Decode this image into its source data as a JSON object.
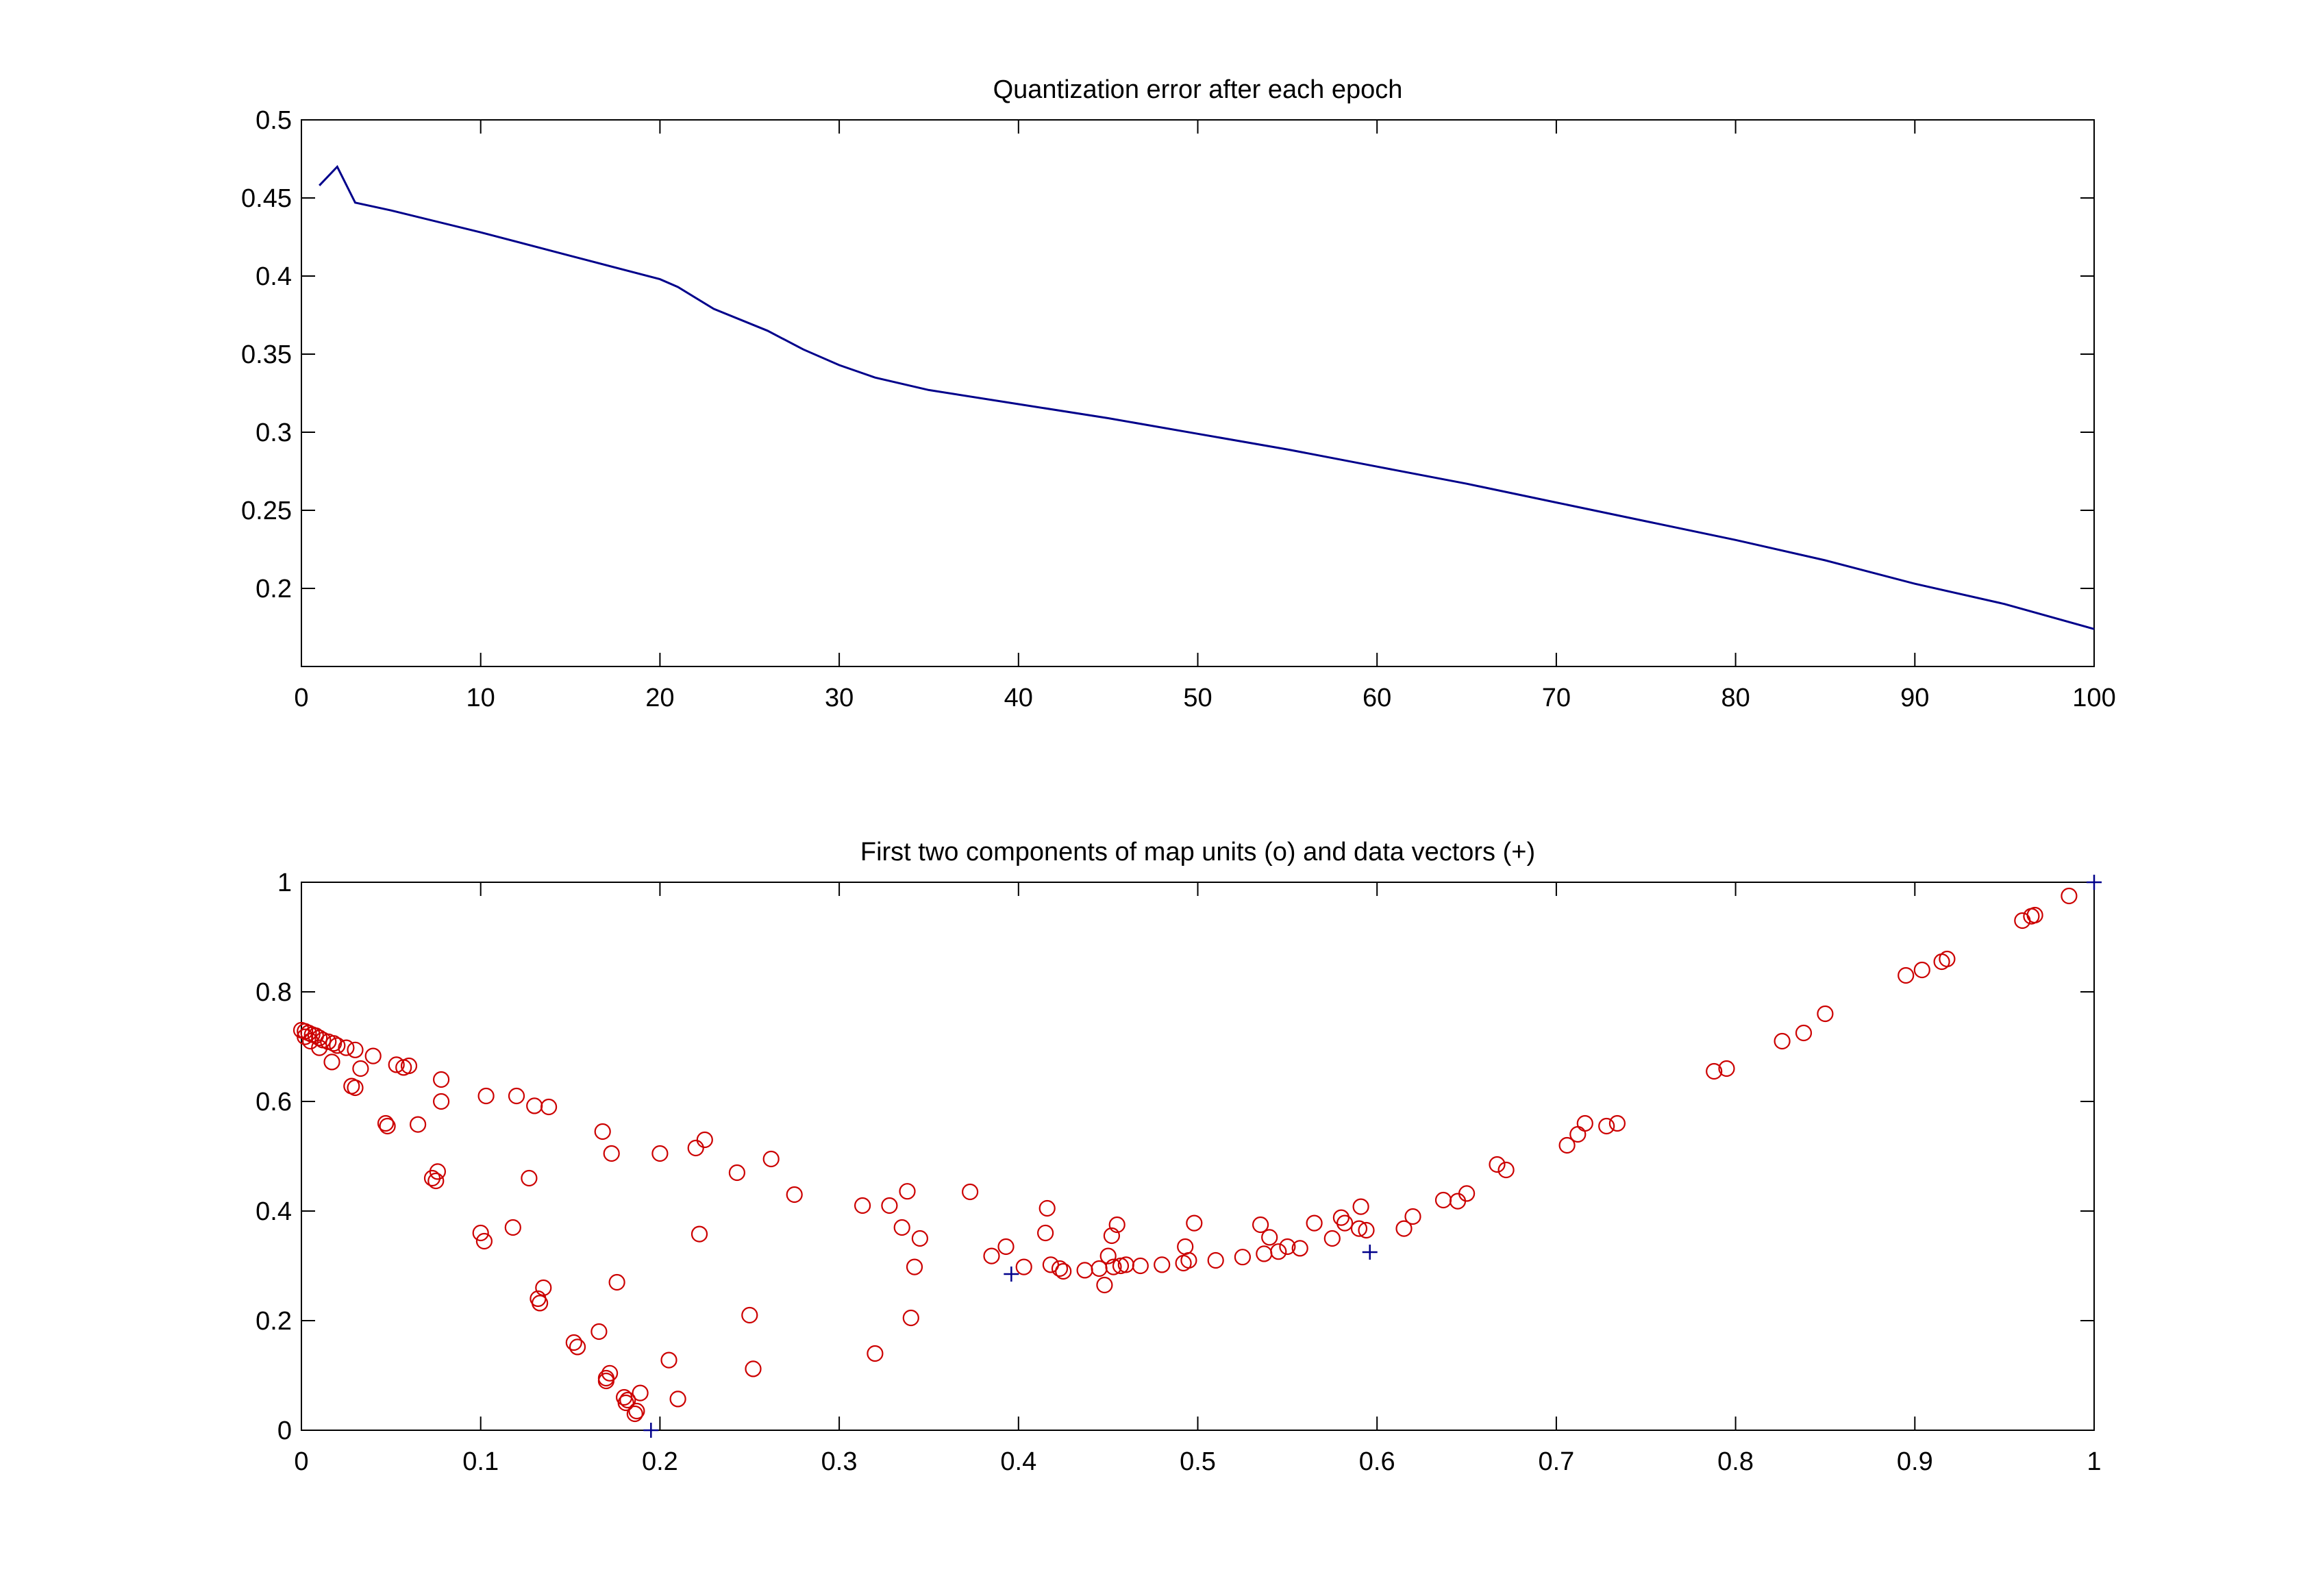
{
  "chart_data": [
    {
      "type": "line",
      "title": "Quantization error after each epoch",
      "xlabel": "",
      "ylabel": "",
      "xlim": [
        0,
        100
      ],
      "ylim": [
        0.15,
        0.5
      ],
      "x_ticks": [
        0,
        10,
        20,
        30,
        40,
        50,
        60,
        70,
        80,
        90,
        100
      ],
      "x_tick_labels": [
        "0",
        "10",
        "20",
        "30",
        "40",
        "50",
        "60",
        "70",
        "80",
        "90",
        "100"
      ],
      "y_ticks": [
        0.2,
        0.25,
        0.3,
        0.35,
        0.4,
        0.45,
        0.5
      ],
      "y_tick_labels": [
        "0.2",
        "0.25",
        "0.3",
        "0.35",
        "0.4",
        "0.45",
        "0.5"
      ],
      "grid": false,
      "series": [
        {
          "color": "#00008b",
          "x": [
            1,
            2,
            3,
            5,
            10,
            15,
            20,
            21,
            23,
            26,
            28,
            30,
            32,
            35,
            40,
            45,
            50,
            55,
            60,
            65,
            70,
            75,
            80,
            85,
            90,
            95,
            100
          ],
          "y": [
            0.458,
            0.47,
            0.447,
            0.442,
            0.428,
            0.413,
            0.398,
            0.393,
            0.379,
            0.365,
            0.353,
            0.343,
            0.335,
            0.327,
            0.318,
            0.309,
            0.299,
            0.289,
            0.278,
            0.267,
            0.255,
            0.243,
            0.231,
            0.218,
            0.203,
            0.19,
            0.174
          ]
        }
      ]
    },
    {
      "type": "scatter",
      "title": "First two components of map units (o) and data vectors (+)",
      "xlabel": "",
      "ylabel": "",
      "xlim": [
        0,
        1
      ],
      "ylim": [
        0,
        1
      ],
      "x_ticks": [
        0,
        0.1,
        0.2,
        0.3,
        0.4,
        0.5,
        0.6,
        0.7,
        0.8,
        0.9,
        1
      ],
      "x_tick_labels": [
        "0",
        "0.1",
        "0.2",
        "0.3",
        "0.4",
        "0.5",
        "0.6",
        "0.7",
        "0.8",
        "0.9",
        "1"
      ],
      "y_ticks": [
        0,
        0.2,
        0.4,
        0.6,
        0.8,
        1
      ],
      "y_tick_labels": [
        "0",
        "0.2",
        "0.4",
        "0.6",
        "0.8",
        "1"
      ],
      "grid": false,
      "series": [
        {
          "marker": "o",
          "color": "#cc0000",
          "x": [
            0.0,
            0.002,
            0.004,
            0.006,
            0.008,
            0.01,
            0.012,
            0.015,
            0.018,
            0.02,
            0.025,
            0.03,
            0.033,
            0.002,
            0.005,
            0.01,
            0.017,
            0.028,
            0.03,
            0.04,
            0.047,
            0.048,
            0.053,
            0.057,
            0.06,
            0.065,
            0.073,
            0.075,
            0.076,
            0.078,
            0.078,
            0.1,
            0.102,
            0.103,
            0.118,
            0.12,
            0.127,
            0.13,
            0.132,
            0.133,
            0.135,
            0.138,
            0.152,
            0.154,
            0.166,
            0.168,
            0.17,
            0.17,
            0.172,
            0.173,
            0.176,
            0.18,
            0.181,
            0.182,
            0.186,
            0.187,
            0.189,
            0.2,
            0.205,
            0.21,
            0.22,
            0.222,
            0.225,
            0.243,
            0.25,
            0.252,
            0.262,
            0.275,
            0.313,
            0.32,
            0.328,
            0.335,
            0.338,
            0.34,
            0.342,
            0.345,
            0.373,
            0.385,
            0.393,
            0.403,
            0.415,
            0.416,
            0.418,
            0.423,
            0.425,
            0.437,
            0.445,
            0.448,
            0.45,
            0.452,
            0.453,
            0.455,
            0.457,
            0.46,
            0.468,
            0.48,
            0.492,
            0.493,
            0.495,
            0.498,
            0.51,
            0.525,
            0.535,
            0.537,
            0.54,
            0.545,
            0.55,
            0.557,
            0.565,
            0.575,
            0.58,
            0.582,
            0.59,
            0.591,
            0.594,
            0.615,
            0.62,
            0.637,
            0.645,
            0.65,
            0.667,
            0.672,
            0.706,
            0.712,
            0.716,
            0.728,
            0.734,
            0.788,
            0.795,
            0.826,
            0.838,
            0.85,
            0.895,
            0.904,
            0.915,
            0.918,
            0.96,
            0.965,
            0.967,
            0.986
          ],
          "y": [
            0.73,
            0.728,
            0.725,
            0.722,
            0.72,
            0.716,
            0.712,
            0.709,
            0.706,
            0.702,
            0.698,
            0.694,
            0.66,
            0.718,
            0.71,
            0.698,
            0.672,
            0.628,
            0.625,
            0.683,
            0.56,
            0.555,
            0.667,
            0.662,
            0.665,
            0.558,
            0.46,
            0.455,
            0.472,
            0.64,
            0.6,
            0.36,
            0.345,
            0.61,
            0.37,
            0.61,
            0.46,
            0.592,
            0.24,
            0.232,
            0.26,
            0.59,
            0.16,
            0.152,
            0.18,
            0.545,
            0.09,
            0.095,
            0.104,
            0.505,
            0.27,
            0.06,
            0.05,
            0.055,
            0.03,
            0.035,
            0.068,
            0.505,
            0.128,
            0.057,
            0.515,
            0.358,
            0.53,
            0.47,
            0.21,
            0.112,
            0.495,
            0.43,
            0.41,
            0.14,
            0.41,
            0.37,
            0.436,
            0.205,
            0.298,
            0.35,
            0.435,
            0.318,
            0.335,
            0.298,
            0.36,
            0.405,
            0.302,
            0.295,
            0.29,
            0.292,
            0.295,
            0.265,
            0.318,
            0.355,
            0.298,
            0.375,
            0.3,
            0.302,
            0.3,
            0.302,
            0.305,
            0.335,
            0.31,
            0.378,
            0.31,
            0.316,
            0.375,
            0.322,
            0.352,
            0.326,
            0.335,
            0.332,
            0.378,
            0.35,
            0.388,
            0.378,
            0.368,
            0.408,
            0.365,
            0.368,
            0.39,
            0.42,
            0.418,
            0.432,
            0.485,
            0.475,
            0.52,
            0.54,
            0.56,
            0.555,
            0.56,
            0.655,
            0.66,
            0.71,
            0.725,
            0.76,
            0.83,
            0.84,
            0.855,
            0.86,
            0.93,
            0.938,
            0.94,
            0.975
          ]
        },
        {
          "marker": "+",
          "color": "#00008b",
          "x": [
            0.195,
            0.396,
            0.596,
            1.0
          ],
          "y": [
            0.0,
            0.285,
            0.325,
            1.0
          ]
        }
      ]
    }
  ]
}
